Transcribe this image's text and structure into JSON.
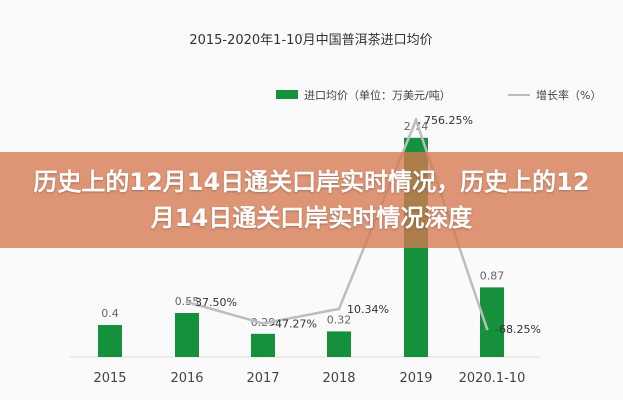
{
  "chart_data": {
    "type": "bar",
    "title": "2015-2020年1-10月中国普洱茶进口均价",
    "categories": [
      "2015",
      "2016",
      "2017",
      "2018",
      "2019",
      "2020.1-10"
    ],
    "series": [
      {
        "name": "进口均价（单位：万美元/吨）",
        "type": "bar",
        "color": "#16913b",
        "values": [
          0.4,
          0.55,
          0.29,
          0.32,
          2.74,
          0.87
        ],
        "labels": [
          "0.4",
          "0.55",
          "0.29",
          "0.32",
          "2.74",
          "0.87"
        ]
      },
      {
        "name": "增长率（%）",
        "type": "line",
        "color": "#bdbdbd",
        "values": [
          null,
          37.5,
          -47.27,
          10.34,
          756.25,
          -68.25
        ],
        "labels": [
          "",
          "37.50%",
          "-47.27%",
          "10.34%",
          "756.25%",
          "-68.25%"
        ]
      }
    ],
    "grid": false,
    "legend": "top-center"
  },
  "banner": {
    "text": "历史上的12月14日通关口岸实时情况，历史上的12月14日通关口岸实时情况深度"
  }
}
